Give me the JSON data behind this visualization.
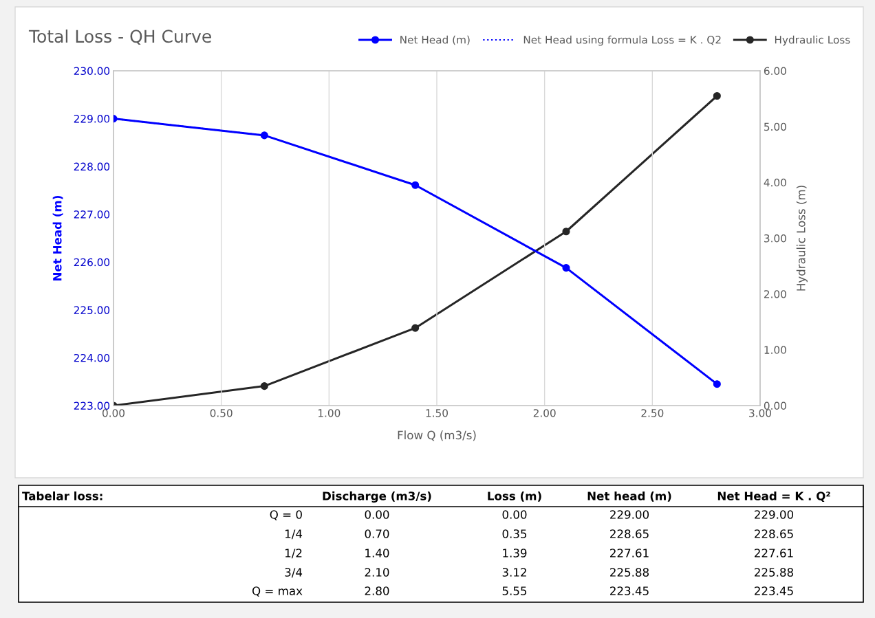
{
  "chart_data": {
    "type": "line",
    "title": "Total Loss - QH Curve",
    "xlabel": "Flow Q (m3/s)",
    "ylabel": "Net Head (m)",
    "y2label": "Hydraulic Loss (m)",
    "x": [
      0.0,
      0.7,
      1.4,
      2.1,
      2.8
    ],
    "series": [
      {
        "name": "Net Head (m)",
        "color": "#0000ff",
        "values": [
          229.0,
          228.65,
          227.61,
          225.88,
          223.45
        ]
      },
      {
        "name": "Net Head using formula Loss = K . Q2",
        "color": "#0000ff",
        "values": [
          229.0,
          228.65,
          227.61,
          225.88,
          223.45
        ],
        "line_style": "dotted",
        "marker": "none"
      },
      {
        "name": "Hydraulic Loss",
        "color": "#262626",
        "values": [
          0.0,
          0.35,
          1.39,
          3.12,
          5.55
        ],
        "axis": "y2"
      }
    ],
    "xlim": [
      0,
      3
    ],
    "xticks": [
      {
        "value": 0,
        "label": "0.00"
      },
      {
        "value": 0.5,
        "label": "0.50"
      },
      {
        "value": 1,
        "label": "1.00"
      },
      {
        "value": 1.5,
        "label": "1.50"
      },
      {
        "value": 2,
        "label": "2.00"
      },
      {
        "value": 2.5,
        "label": "2.50"
      },
      {
        "value": 3,
        "label": "3.00"
      }
    ],
    "ylim": [
      223,
      230
    ],
    "yticks": [
      {
        "value": 223,
        "label": "223.00"
      },
      {
        "value": 224,
        "label": "224.00"
      },
      {
        "value": 225,
        "label": "225.00"
      },
      {
        "value": 226,
        "label": "226.00"
      },
      {
        "value": 227,
        "label": "227.00"
      },
      {
        "value": 228,
        "label": "228.00"
      },
      {
        "value": 229,
        "label": "229.00"
      },
      {
        "value": 230,
        "label": "230.00"
      }
    ],
    "y2lim": [
      0,
      6
    ],
    "y2ticks": [
      {
        "value": 0,
        "label": "0.00"
      },
      {
        "value": 1,
        "label": "1.00"
      },
      {
        "value": 2,
        "label": "2.00"
      },
      {
        "value": 3,
        "label": "3.00"
      },
      {
        "value": 4,
        "label": "4.00"
      },
      {
        "value": 5,
        "label": "5.00"
      },
      {
        "value": 6,
        "label": "6.00"
      }
    ],
    "grid": "x",
    "legend": "top",
    "marker": "circle",
    "line_style": "solid",
    "annotations": [
      "Tabelar loss:",
      "Discharge (m3/s)",
      "Loss (m)",
      "Net head (m)",
      "Net Head = K . Q²",
      "Q = 0",
      "1/4",
      "1/2",
      "3/4",
      "Q = max",
      "0.00",
      "0.70",
      "1.40",
      "2.10",
      "2.80",
      "0.00",
      "0.35",
      "1.39",
      "3.12",
      "5.55",
      "229.00",
      "228.65",
      "227.61",
      "225.88",
      "223.45",
      "229.00",
      "228.65",
      "227.61",
      "225.88",
      "223.45"
    ]
  }
}
